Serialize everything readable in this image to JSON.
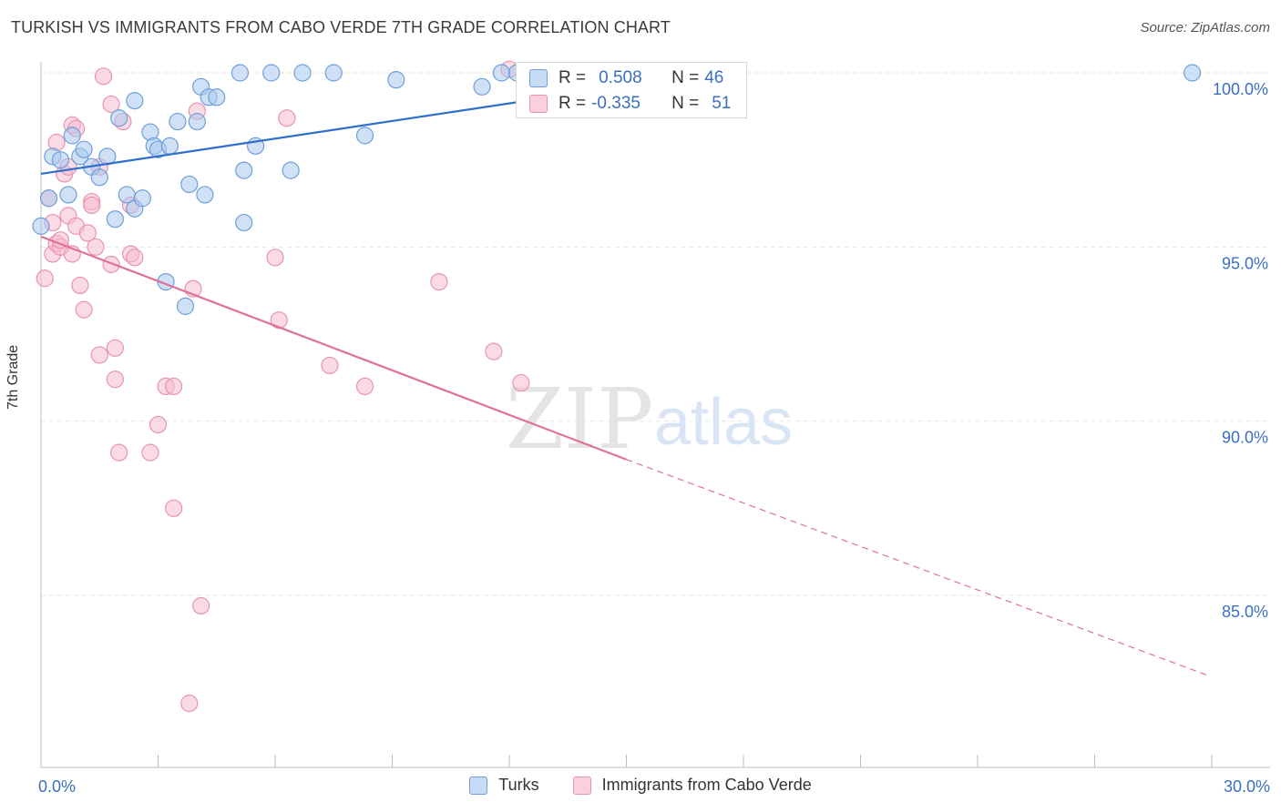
{
  "title": "TURKISH VS IMMIGRANTS FROM CABO VERDE 7TH GRADE CORRELATION CHART",
  "source": "Source: ZipAtlas.com",
  "watermark": {
    "zip": "ZIP",
    "atlas": "atlas"
  },
  "colors": {
    "turks_fill": "#a9c8ee",
    "turks_stroke": "#6d9fdc",
    "turks_line": "#2e6fcc",
    "cabo_fill": "#f5bcd0",
    "cabo_stroke": "#e993b1",
    "cabo_line": "#e0709a",
    "tick_label": "#3a6fc4",
    "grid": "#e6e6e6"
  },
  "stats_box": {
    "rows": [
      {
        "series": "Turks",
        "r_label": "R =",
        "r_value": "0.508",
        "n_label": "N =",
        "n_value": "46"
      },
      {
        "series": "Immigrants from Cabo Verde",
        "r_label": "R =",
        "r_value": "-0.335",
        "n_label": "N =",
        "n_value": "51"
      }
    ]
  },
  "legend": [
    {
      "label": "Turks"
    },
    {
      "label": "Immigrants from Cabo Verde"
    }
  ],
  "chart_data": {
    "type": "scatter",
    "title": "TURKISH VS IMMIGRANTS FROM CABO VERDE 7TH GRADE CORRELATION CHART",
    "xlabel": "",
    "ylabel": "7th Grade",
    "xlim": [
      0,
      30
    ],
    "ylim": [
      80.5,
      101
    ],
    "x_tick_labels": [
      {
        "value": 0,
        "label": "0.0%"
      },
      {
        "value": 30,
        "label": "30.0%"
      }
    ],
    "y_tick_labels": [
      {
        "value": 100,
        "label": "100.0%"
      },
      {
        "value": 95,
        "label": "95.0%"
      },
      {
        "value": 90,
        "label": "90.0%"
      },
      {
        "value": 85,
        "label": "85.0%"
      }
    ],
    "series": [
      {
        "name": "Turks",
        "points": [
          [
            0.0,
            95.6
          ],
          [
            0.2,
            96.4
          ],
          [
            0.3,
            97.6
          ],
          [
            0.5,
            97.5
          ],
          [
            0.7,
            96.5
          ],
          [
            0.8,
            98.2
          ],
          [
            1.0,
            97.6
          ],
          [
            1.1,
            97.8
          ],
          [
            1.3,
            97.3
          ],
          [
            1.5,
            97.0
          ],
          [
            1.7,
            97.6
          ],
          [
            1.9,
            95.8
          ],
          [
            2.0,
            98.7
          ],
          [
            2.2,
            96.5
          ],
          [
            2.4,
            96.1
          ],
          [
            2.4,
            99.2
          ],
          [
            2.6,
            96.4
          ],
          [
            2.8,
            98.3
          ],
          [
            2.9,
            97.9
          ],
          [
            3.0,
            97.8
          ],
          [
            3.2,
            94.0
          ],
          [
            3.3,
            97.9
          ],
          [
            3.5,
            98.6
          ],
          [
            3.7,
            93.3
          ],
          [
            3.8,
            96.8
          ],
          [
            4.0,
            98.6
          ],
          [
            4.1,
            99.6
          ],
          [
            4.2,
            96.5
          ],
          [
            4.3,
            99.3
          ],
          [
            4.5,
            99.3
          ],
          [
            5.1,
            100.0
          ],
          [
            5.2,
            95.7
          ],
          [
            5.2,
            97.2
          ],
          [
            5.5,
            97.9
          ],
          [
            5.9,
            100.0
          ],
          [
            6.4,
            97.2
          ],
          [
            6.7,
            100.0
          ],
          [
            7.5,
            100.0
          ],
          [
            8.3,
            98.2
          ],
          [
            9.1,
            99.8
          ],
          [
            11.3,
            99.6
          ],
          [
            11.8,
            100.0
          ],
          [
            12.2,
            100.0
          ],
          [
            12.6,
            100.0
          ],
          [
            16.5,
            100.0
          ],
          [
            29.5,
            100.0
          ]
        ]
      },
      {
        "name": "Immigrants from Cabo Verde",
        "points": [
          [
            0.1,
            94.1
          ],
          [
            0.2,
            96.4
          ],
          [
            0.3,
            94.8
          ],
          [
            0.3,
            95.7
          ],
          [
            0.4,
            95.1
          ],
          [
            0.4,
            98.0
          ],
          [
            0.5,
            95.0
          ],
          [
            0.5,
            95.2
          ],
          [
            0.6,
            97.1
          ],
          [
            0.7,
            97.3
          ],
          [
            0.7,
            95.9
          ],
          [
            0.8,
            98.5
          ],
          [
            0.8,
            94.8
          ],
          [
            0.9,
            98.4
          ],
          [
            0.9,
            95.6
          ],
          [
            1.0,
            93.9
          ],
          [
            1.1,
            93.2
          ],
          [
            1.2,
            95.4
          ],
          [
            1.3,
            96.3
          ],
          [
            1.3,
            96.2
          ],
          [
            1.4,
            95.0
          ],
          [
            1.5,
            91.9
          ],
          [
            1.5,
            97.3
          ],
          [
            1.6,
            99.9
          ],
          [
            1.8,
            99.1
          ],
          [
            1.8,
            94.5
          ],
          [
            1.9,
            92.1
          ],
          [
            1.9,
            91.2
          ],
          [
            2.0,
            89.1
          ],
          [
            2.1,
            98.6
          ],
          [
            2.3,
            96.2
          ],
          [
            2.3,
            94.8
          ],
          [
            2.4,
            94.7
          ],
          [
            2.8,
            89.1
          ],
          [
            3.0,
            89.9
          ],
          [
            3.2,
            91.0
          ],
          [
            3.4,
            91.0
          ],
          [
            3.4,
            87.5
          ],
          [
            3.8,
            81.9
          ],
          [
            3.9,
            93.8
          ],
          [
            4.0,
            98.9
          ],
          [
            4.1,
            84.7
          ],
          [
            6.0,
            94.7
          ],
          [
            6.1,
            92.9
          ],
          [
            6.3,
            98.7
          ],
          [
            7.4,
            91.6
          ],
          [
            8.3,
            91.0
          ],
          [
            10.2,
            94.0
          ],
          [
            11.6,
            92.0
          ],
          [
            12.3,
            91.1
          ],
          [
            12.0,
            100.1
          ]
        ]
      }
    ],
    "trend_lines": [
      {
        "series": "Turks",
        "from": [
          0.0,
          97.1
        ],
        "to": [
          17.2,
          100.0
        ],
        "style": "solid"
      },
      {
        "series": "Immigrants from Cabo Verde",
        "from": [
          0.0,
          95.3
        ],
        "to": [
          15.0,
          88.9
        ],
        "style": "solid"
      },
      {
        "series": "Immigrants from Cabo Verde",
        "from": [
          15.0,
          88.9
        ],
        "to": [
          29.9,
          82.7
        ],
        "style": "dashed"
      }
    ]
  }
}
